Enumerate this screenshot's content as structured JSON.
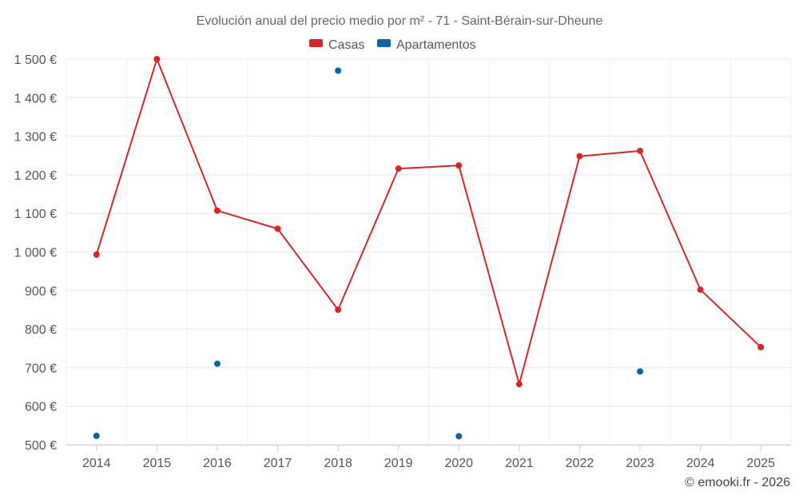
{
  "chart_data": {
    "type": "line",
    "title": "Evolución anual del precio medio por m² - 71 - Saint-Bérain-sur-Dheune",
    "xlabel": "",
    "ylabel": "",
    "categories": [
      "2014",
      "2015",
      "2016",
      "2017",
      "2018",
      "2019",
      "2020",
      "2021",
      "2022",
      "2023",
      "2024",
      "2025"
    ],
    "ylim": [
      500,
      1500
    ],
    "yticks": [
      500,
      600,
      700,
      800,
      900,
      1000,
      1100,
      1200,
      1300,
      1400,
      1500
    ],
    "ytick_labels": [
      "500 €",
      "600 €",
      "700 €",
      "800 €",
      "900 €",
      "1 000 €",
      "1 100 €",
      "1 200 €",
      "1 300 €",
      "1 400 €",
      "1 500 €"
    ],
    "grid": true,
    "legend_position": "top-center",
    "series": [
      {
        "name": "Casas",
        "color": "#d62728",
        "style": "line-with-markers",
        "values": [
          993,
          1500,
          1107,
          1060,
          850,
          1216,
          1224,
          657,
          1248,
          1262,
          902,
          753
        ]
      },
      {
        "name": "Apartamentos",
        "color": "#0b64a0",
        "style": "markers",
        "values": [
          523,
          null,
          710,
          null,
          1470,
          null,
          522,
          null,
          null,
          690,
          null,
          null
        ]
      }
    ]
  },
  "credit": "© emooki.fr - 2026"
}
